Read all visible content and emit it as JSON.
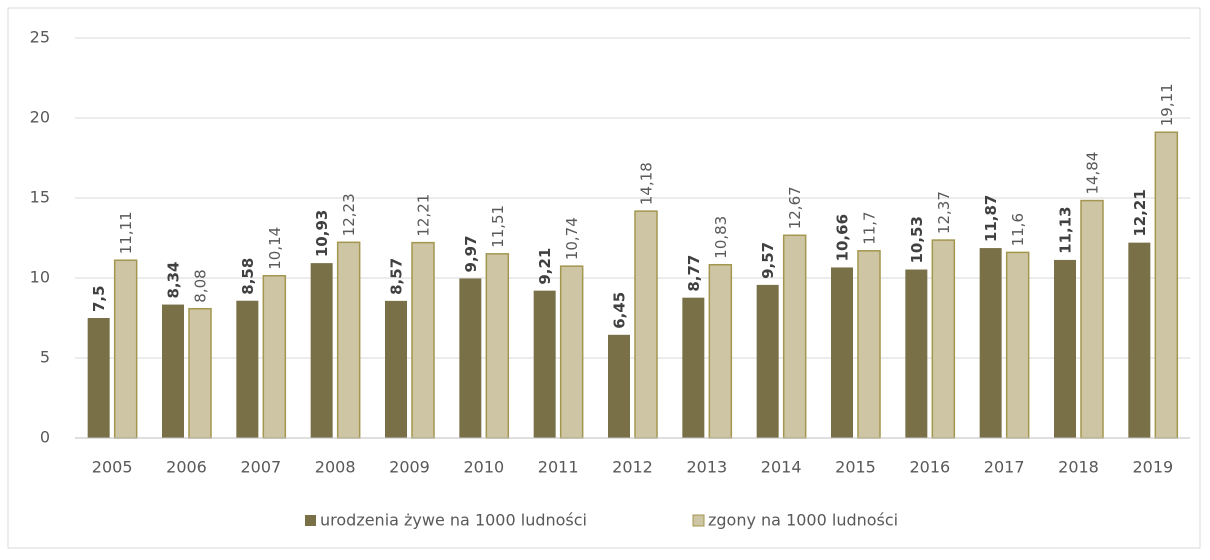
{
  "chart_data": {
    "type": "bar",
    "categories": [
      "2005",
      "2006",
      "2007",
      "2008",
      "2009",
      "2010",
      "2011",
      "2012",
      "2013",
      "2014",
      "2015",
      "2016",
      "2017",
      "2018",
      "2019"
    ],
    "series": [
      {
        "name": "urodzenia żywe na 1000 ludności",
        "color": "#7a7048",
        "values": [
          7.5,
          8.34,
          8.58,
          10.93,
          8.57,
          9.97,
          9.21,
          6.45,
          8.77,
          9.57,
          10.66,
          10.53,
          11.87,
          11.13,
          12.21
        ],
        "value_labels": [
          "7,5",
          "8,34",
          "8,58",
          "10,93",
          "8,57",
          "9,97",
          "9,21",
          "6,45",
          "8,77",
          "9,57",
          "10,66",
          "10,53",
          "11,87",
          "11,13",
          "12,21"
        ]
      },
      {
        "name": "zgony na 1000 ludności",
        "color": "#cdc5a4",
        "values": [
          11.11,
          8.08,
          10.14,
          12.23,
          12.21,
          11.51,
          10.74,
          14.18,
          10.83,
          12.67,
          11.7,
          12.37,
          11.6,
          14.84,
          19.11
        ],
        "value_labels": [
          "11,11",
          "8,08",
          "10,14",
          "12,23",
          "12,21",
          "11,51",
          "10,74",
          "14,18",
          "10,83",
          "12,67",
          "11,7",
          "12,37",
          "11,6",
          "14,84",
          "19,11"
        ]
      }
    ],
    "ylim": [
      0,
      25
    ],
    "yticks": [
      0,
      5,
      10,
      15,
      20,
      25
    ],
    "grid": true,
    "legend": "bottom"
  }
}
